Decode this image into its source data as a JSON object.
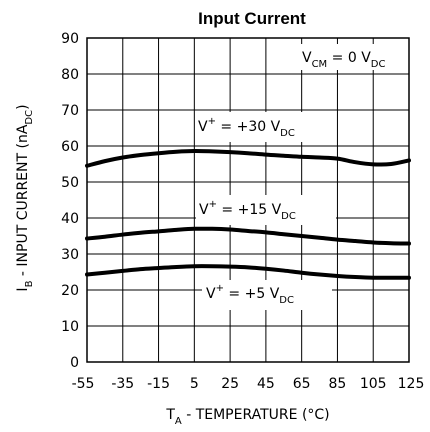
{
  "chart_data": {
    "type": "line",
    "title": "Input Current",
    "xlabel": {
      "main": "T",
      "sub": "A",
      "rest": " - TEMPERATURE (°C)"
    },
    "ylabel": {
      "main": "I",
      "sub": "B",
      "mid": " - INPUT CURRENT (nA",
      "sub2": "DC",
      "end": ")"
    },
    "xlim": [
      -55,
      125
    ],
    "ylim": [
      0,
      90
    ],
    "x_ticks": [
      -55,
      -35,
      -15,
      5,
      25,
      45,
      65,
      85,
      105,
      125
    ],
    "x_tick_labels": [
      "-55",
      "-35",
      "-15",
      "5",
      "25",
      "45",
      "65",
      "85",
      "105",
      "125"
    ],
    "y_ticks": [
      0,
      10,
      20,
      30,
      40,
      50,
      60,
      70,
      80,
      90
    ],
    "y_tick_labels": [
      "0",
      "10",
      "20",
      "30",
      "40",
      "50",
      "60",
      "70",
      "80",
      "90"
    ],
    "grid": true,
    "condition": {
      "main": "V",
      "sub": "CM",
      "mid": " = 0 V",
      "sub2": "DC"
    },
    "series": [
      {
        "label": {
          "main": "V",
          "sup": "+",
          "mid": " = +30 V",
          "sub": "DC"
        },
        "x": [
          -55,
          -45,
          -35,
          -25,
          -15,
          -5,
          5,
          15,
          25,
          35,
          45,
          55,
          65,
          75,
          85,
          95,
          105,
          115,
          125
        ],
        "y": [
          54.5,
          55.8,
          56.8,
          57.5,
          58.0,
          58.4,
          58.6,
          58.5,
          58.3,
          58.0,
          57.6,
          57.3,
          57.0,
          56.8,
          56.5,
          55.5,
          54.9,
          55.0,
          56.0
        ]
      },
      {
        "label": {
          "main": "V",
          "sup": "+",
          "mid": " = +15 V",
          "sub": "DC"
        },
        "x": [
          -55,
          -45,
          -35,
          -25,
          -15,
          -5,
          5,
          15,
          25,
          35,
          45,
          55,
          65,
          75,
          85,
          95,
          105,
          115,
          125
        ],
        "y": [
          34.3,
          34.8,
          35.4,
          35.9,
          36.3,
          36.7,
          37.0,
          37.0,
          36.8,
          36.4,
          36.0,
          35.5,
          35.0,
          34.5,
          34.0,
          33.6,
          33.2,
          33.0,
          32.9
        ]
      },
      {
        "label": {
          "main": "V",
          "sup": "+",
          "mid": " = +5 V",
          "sub": "DC"
        },
        "x": [
          -55,
          -45,
          -35,
          -25,
          -15,
          -5,
          5,
          15,
          25,
          35,
          45,
          55,
          65,
          75,
          85,
          95,
          105,
          115,
          125
        ],
        "y": [
          24.3,
          24.8,
          25.3,
          25.8,
          26.1,
          26.4,
          26.6,
          26.6,
          26.5,
          26.3,
          25.9,
          25.4,
          24.8,
          24.3,
          23.9,
          23.6,
          23.4,
          23.4,
          23.4
        ]
      }
    ]
  }
}
